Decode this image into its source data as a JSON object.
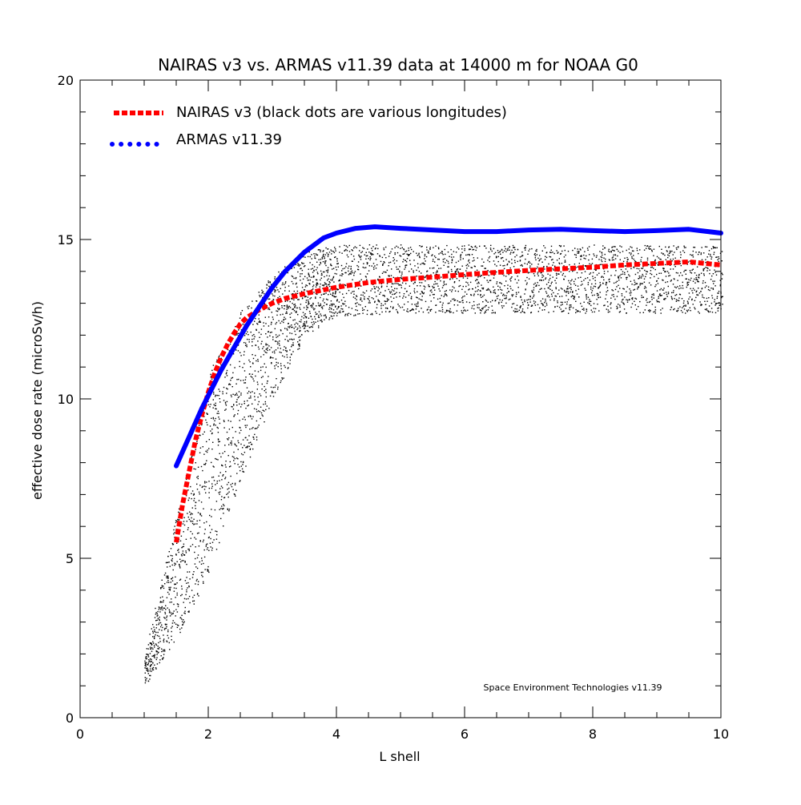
{
  "chart_data": {
    "type": "scatter",
    "title": "NAIRAS  v3 vs. ARMAS v11.39 data at 14000 m for NOAA G0",
    "xlabel": "L shell",
    "ylabel": "effective dose rate (microSv/h)",
    "xlim": [
      0,
      10
    ],
    "ylim": [
      0,
      20
    ],
    "x_ticks": [
      0,
      2,
      4,
      6,
      8,
      10
    ],
    "x_tick_labels": [
      "0",
      "2",
      "4",
      "6",
      "8",
      "10"
    ],
    "y_ticks": [
      0,
      5,
      10,
      15,
      20
    ],
    "y_tick_labels": [
      "0",
      "5",
      "10",
      "15",
      "20"
    ],
    "grid": false,
    "legend_position": "top-left",
    "annotation": "Space Environment Technologies v11.39",
    "series": [
      {
        "name": "NAIRAS v3 (black dots are various longitudes)",
        "style": "dashed",
        "color": "#ff0000",
        "x": [
          1.5,
          1.6,
          1.7,
          1.8,
          1.9,
          2.0,
          2.1,
          2.2,
          2.3,
          2.4,
          2.5,
          2.6,
          2.8,
          3.0,
          3.2,
          3.5,
          4.0,
          4.5,
          5.0,
          5.5,
          6.0,
          6.5,
          7.0,
          7.5,
          8.0,
          8.5,
          9.0,
          9.5,
          10.0
        ],
        "y": [
          5.5,
          6.7,
          7.7,
          8.7,
          9.5,
          10.2,
          10.8,
          11.3,
          11.7,
          12.05,
          12.35,
          12.55,
          12.8,
          13.0,
          13.15,
          13.3,
          13.5,
          13.65,
          13.75,
          13.82,
          13.9,
          13.97,
          14.03,
          14.08,
          14.13,
          14.2,
          14.25,
          14.3,
          14.2
        ]
      },
      {
        "name": "ARMAS v11.39",
        "style": "solid",
        "color": "#0000ff",
        "x": [
          1.5,
          1.7,
          1.9,
          2.0,
          2.2,
          2.4,
          2.6,
          2.8,
          3.0,
          3.2,
          3.5,
          3.8,
          4.0,
          4.3,
          4.6,
          5.0,
          5.5,
          6.0,
          6.5,
          7.0,
          7.5,
          8.0,
          8.5,
          9.0,
          9.5,
          10.0
        ],
        "y": [
          7.9,
          8.8,
          9.7,
          10.1,
          10.9,
          11.6,
          12.3,
          12.9,
          13.5,
          14.0,
          14.6,
          15.05,
          15.2,
          15.35,
          15.4,
          15.35,
          15.3,
          15.25,
          15.25,
          15.3,
          15.32,
          15.28,
          15.25,
          15.28,
          15.32,
          15.2
        ]
      }
    ],
    "longitude_scatter": {
      "color": "#000000",
      "description_from_legend": "black dots are various longitudes",
      "envelope_x": [
        1.0,
        1.5,
        2.0,
        2.5,
        3.0,
        3.5,
        4.0,
        5.0,
        6.0,
        8.0,
        10.0
      ],
      "envelope_low": [
        1.0,
        2.5,
        4.5,
        7.5,
        10.0,
        12.0,
        12.6,
        12.7,
        12.7,
        12.7,
        12.7
      ],
      "envelope_high": [
        2.0,
        6.5,
        10.8,
        12.8,
        13.9,
        14.6,
        14.85,
        14.85,
        14.85,
        14.85,
        14.8
      ]
    }
  }
}
